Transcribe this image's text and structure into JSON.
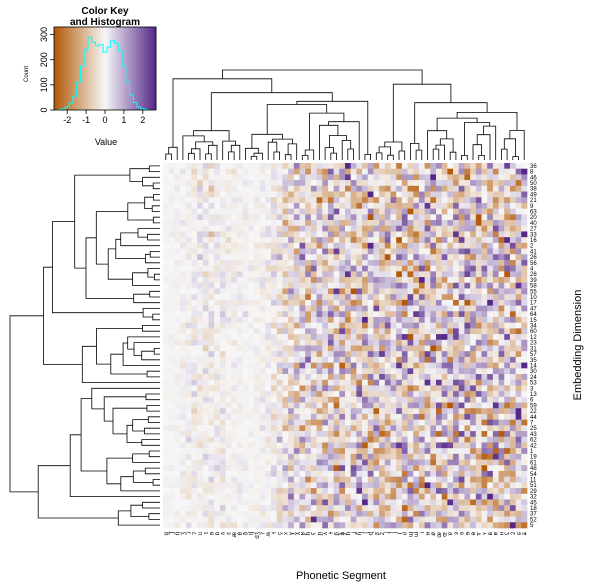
{
  "chart_data": {
    "type": "heatmap",
    "title": "",
    "xlabel": "Phonetic Segment",
    "ylabel": "Embedding Dimension",
    "n_rows": 64,
    "n_cols": 64,
    "row_labels": [
      "36",
      "8",
      "46",
      "50",
      "38",
      "49",
      "21",
      "9",
      "63",
      "20",
      "40",
      "27",
      "33",
      "16",
      "2",
      "41",
      "26",
      "56",
      "4",
      "28",
      "39",
      "58",
      "55",
      "10",
      "17",
      "47",
      "64",
      "15",
      "34",
      "60",
      "12",
      "23",
      "31",
      "57",
      "35",
      "14",
      "30",
      "24",
      "53",
      "3",
      "13",
      "6",
      "59",
      "22",
      "44",
      "7",
      "25",
      "43",
      "62",
      "42",
      "1",
      "19",
      "61",
      "48",
      "54",
      "11",
      "51",
      "29",
      "32",
      "45",
      "18",
      "37",
      "52",
      "5"
    ],
    "column_labels": [
      "ɡ",
      "ʃ",
      "ŋ",
      "ʒ",
      "ɹ",
      "ʔ",
      "ʊ",
      "ɪ",
      "ə",
      "ɒ",
      "ʌ",
      "ɛ",
      "æ",
      "θ",
      "ð",
      "tʃ",
      "dʒ",
      "ɾ",
      "ʍ",
      "ɬ",
      "ç",
      "x",
      "ɣ",
      "χ",
      "ʁ",
      "ħ",
      "ʕ",
      "ɲ",
      "ʎ",
      "ɫ",
      "β",
      "ɸ",
      "ɦ",
      "ʝ",
      "ɳ",
      "ʈ",
      "ɖ",
      "ʂ",
      "ʐ",
      "ɻ",
      "ɭ",
      "ɽ",
      "ʋ",
      "ɰ",
      "ɯ",
      "ɨ",
      "ʉ",
      "ø",
      "œ",
      "ɶ",
      "ɐ",
      "ɜ",
      "ɞ",
      "ɘ",
      "ɵ",
      "ɤ",
      "ʏ",
      "ʙ",
      "ʀ",
      "ʜ",
      "ʢ",
      "ʡ",
      "ɕ",
      "ʑ"
    ],
    "color_key": {
      "title": "Color Key\nand Histogram",
      "xlabel": "Value",
      "ylabel": "Count",
      "x_ticks": [
        -2,
        -1,
        0,
        1,
        2
      ],
      "y_ticks": [
        0,
        100,
        200,
        300
      ],
      "range": [
        -2.7,
        2.7
      ],
      "colors": {
        "low": "#b35806",
        "mid": "#f7f7f7",
        "high": "#542788"
      },
      "histogram_color": "#00ffff",
      "histogram": {
        "bins": [
          -2.4,
          -2.2,
          -2.0,
          -1.8,
          -1.6,
          -1.4,
          -1.2,
          -1.0,
          -0.8,
          -0.6,
          -0.4,
          -0.2,
          0.0,
          0.2,
          0.4,
          0.6,
          0.8,
          1.0,
          1.2,
          1.4,
          1.6,
          1.8,
          2.0,
          2.2,
          2.4
        ],
        "counts": [
          2,
          5,
          12,
          28,
          55,
          110,
          175,
          240,
          290,
          270,
          255,
          260,
          230,
          250,
          275,
          265,
          235,
          175,
          110,
          60,
          30,
          12,
          5,
          2
        ]
      }
    },
    "column_weight": [
      0.02,
      0.05,
      0.08,
      0.12,
      0.18,
      0.22,
      0.28,
      0.3,
      0.28,
      0.25,
      0.22,
      0.18,
      0.15,
      0.12,
      0.1,
      0.09,
      0.1,
      0.14,
      0.2,
      0.3,
      0.42,
      0.55,
      0.65,
      0.72,
      0.78,
      0.8,
      0.82,
      0.84,
      0.86,
      0.88,
      0.9,
      0.9,
      0.92,
      0.94,
      0.95,
      0.95,
      0.96,
      0.97,
      0.98,
      0.98,
      0.99,
      1.0,
      1.0,
      1.0,
      1.0,
      1.0,
      1.0,
      1.0,
      1.0,
      1.0,
      1.0,
      1.0,
      1.0,
      1.0,
      1.0,
      1.0,
      1.0,
      1.0,
      1.0,
      1.0,
      1.0,
      1.0,
      1.0,
      1.0
    ],
    "seed": 20240
  }
}
